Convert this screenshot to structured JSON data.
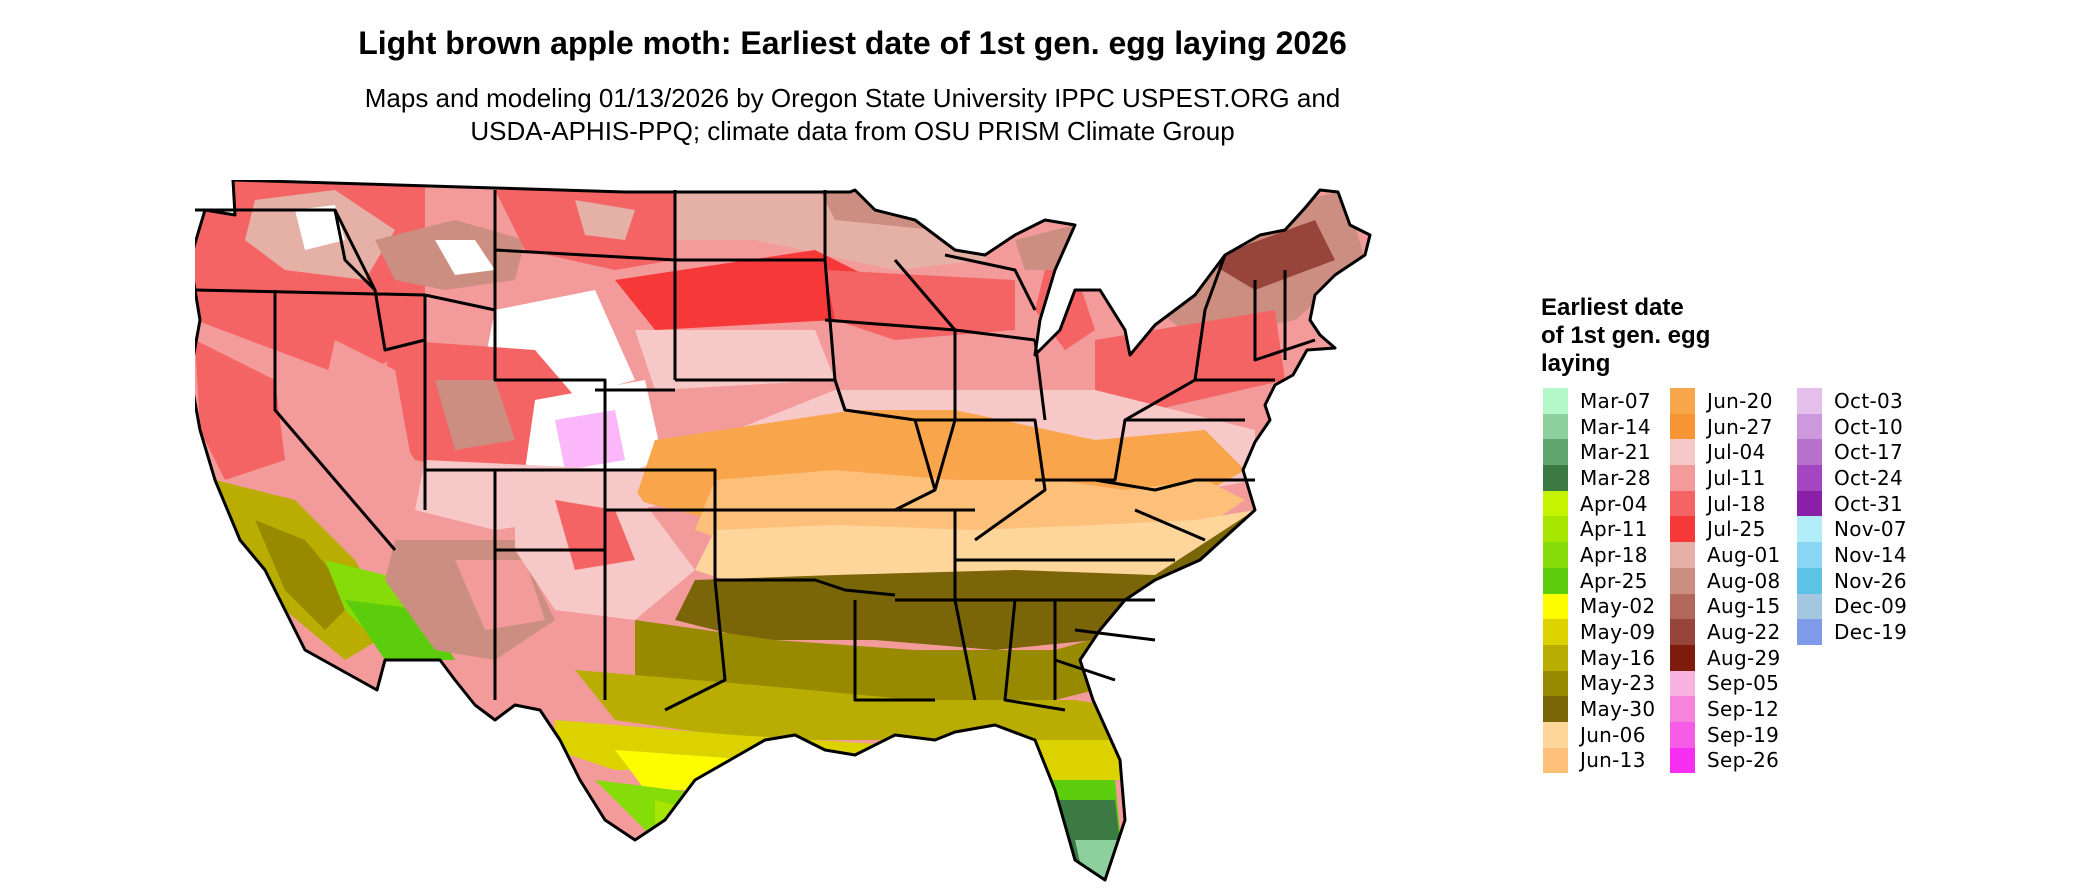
{
  "title": "Light brown apple moth: Earliest date of 1st gen. egg laying 2026",
  "subtitle_line1": "Maps and modeling 01/13/2026 by Oregon State University IPPC USPEST.ORG and",
  "subtitle_line2": "USDA-APHIS-PPQ; climate data from OSU PRISM Climate Group",
  "legend": {
    "title_line1": "Earliest date",
    "title_line2": "of 1st gen. egg",
    "title_line3": "laying",
    "columns": [
      [
        {
          "label": "Mar-07",
          "color": "#b6f7c9"
        },
        {
          "label": "Mar-14",
          "color": "#8ed09d"
        },
        {
          "label": "Mar-21",
          "color": "#5fa56d"
        },
        {
          "label": "Mar-28",
          "color": "#3b7a42"
        },
        {
          "label": "Apr-04",
          "color": "#c6f400"
        },
        {
          "label": "Apr-11",
          "color": "#a6e600"
        },
        {
          "label": "Apr-18",
          "color": "#86dc08"
        },
        {
          "label": "Apr-25",
          "color": "#5ccd0c"
        },
        {
          "label": "May-02",
          "color": "#fdfd00"
        },
        {
          "label": "May-09",
          "color": "#dbd200"
        },
        {
          "label": "May-16",
          "color": "#b8ad00"
        },
        {
          "label": "May-23",
          "color": "#988a00"
        },
        {
          "label": "May-30",
          "color": "#7a6508"
        },
        {
          "label": "Jun-06",
          "color": "#fed69c"
        },
        {
          "label": "Jun-13",
          "color": "#fcc07a"
        }
      ],
      [
        {
          "label": "Jun-20",
          "color": "#f9a54c"
        },
        {
          "label": "Jun-27",
          "color": "#f79434"
        },
        {
          "label": "Jul-04",
          "color": "#f7c8c8"
        },
        {
          "label": "Jul-11",
          "color": "#f39b9b"
        },
        {
          "label": "Jul-18",
          "color": "#f46464"
        },
        {
          "label": "Jul-25",
          "color": "#f73838"
        },
        {
          "label": "Aug-01",
          "color": "#e5b1a6"
        },
        {
          "label": "Aug-08",
          "color": "#cb8e80"
        },
        {
          "label": "Aug-15",
          "color": "#b1675a"
        },
        {
          "label": "Aug-22",
          "color": "#97453a"
        },
        {
          "label": "Aug-29",
          "color": "#7e1c0c"
        },
        {
          "label": "Sep-05",
          "color": "#f9b2e2"
        },
        {
          "label": "Sep-12",
          "color": "#f784dc"
        },
        {
          "label": "Sep-19",
          "color": "#f65ce6"
        },
        {
          "label": "Sep-26",
          "color": "#f62ef2"
        }
      ],
      [
        {
          "label": "Oct-03",
          "color": "#e5c0ea"
        },
        {
          "label": "Oct-10",
          "color": "#cd98dc"
        },
        {
          "label": "Oct-17",
          "color": "#b872cc"
        },
        {
          "label": "Oct-24",
          "color": "#a446c0"
        },
        {
          "label": "Oct-31",
          "color": "#8a20a8"
        },
        {
          "label": "Nov-07",
          "color": "#b2eef9"
        },
        {
          "label": "Nov-14",
          "color": "#8ad6f2"
        },
        {
          "label": "Nov-26",
          "color": "#5cc2e6"
        },
        {
          "label": "Dec-09",
          "color": "#a4c6e0"
        },
        {
          "label": "Dec-19",
          "color": "#7e9ae8"
        }
      ]
    ]
  }
}
